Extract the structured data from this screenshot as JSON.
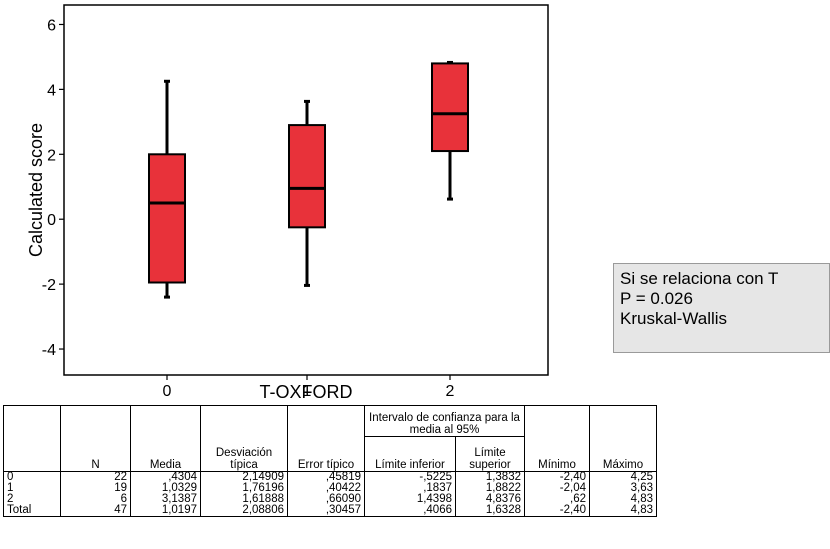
{
  "chart_data": {
    "type": "boxplot",
    "xlabel": "T-OXFORD",
    "ylabel": "Calculated score",
    "ylim": [
      -4.8,
      6.6
    ],
    "yticks": [
      "6",
      "4",
      "2",
      "0",
      "-2",
      "-4"
    ],
    "categories": [
      "0",
      "1",
      "2"
    ],
    "boxes": [
      {
        "category": "0",
        "min": -2.4,
        "q1": -1.95,
        "median": 0.5,
        "q3": 2.0,
        "max": 4.25
      },
      {
        "category": "1",
        "min": -2.04,
        "q1": -0.25,
        "median": 0.95,
        "q3": 2.9,
        "max": 3.63
      },
      {
        "category": "2",
        "min": 0.62,
        "q1": 2.1,
        "median": 3.25,
        "q3": 4.8,
        "max": 4.83
      }
    ],
    "box_color": "#e8323a"
  },
  "annotation": {
    "line1": "Si se relaciona con T",
    "line2": "P = 0.026",
    "line3": "Kruskal-Wallis"
  },
  "table": {
    "group_header": "Intervalo de confianza para la media al 95%",
    "headers": [
      "",
      "N",
      "Media",
      "Desviación típica",
      "Error típico",
      "Límite inferior",
      "Límite superior",
      "Mínimo",
      "Máximo"
    ],
    "rows": [
      [
        "0",
        "22",
        ",4304",
        "2,14909",
        ",45819",
        "-,5225",
        "1,3832",
        "-2,40",
        "4,25"
      ],
      [
        "1",
        "19",
        "1,0329",
        "1,76196",
        ",40422",
        ",1837",
        "1,8822",
        "-2,04",
        "3,63"
      ],
      [
        "2",
        "6",
        "3,1387",
        "1,61888",
        ",66090",
        "1,4398",
        "4,8376",
        ",62",
        "4,83"
      ],
      [
        "Total",
        "47",
        "1,0197",
        "2,08806",
        ",30457",
        ",4066",
        "1,6328",
        "-2,40",
        "4,83"
      ]
    ]
  }
}
